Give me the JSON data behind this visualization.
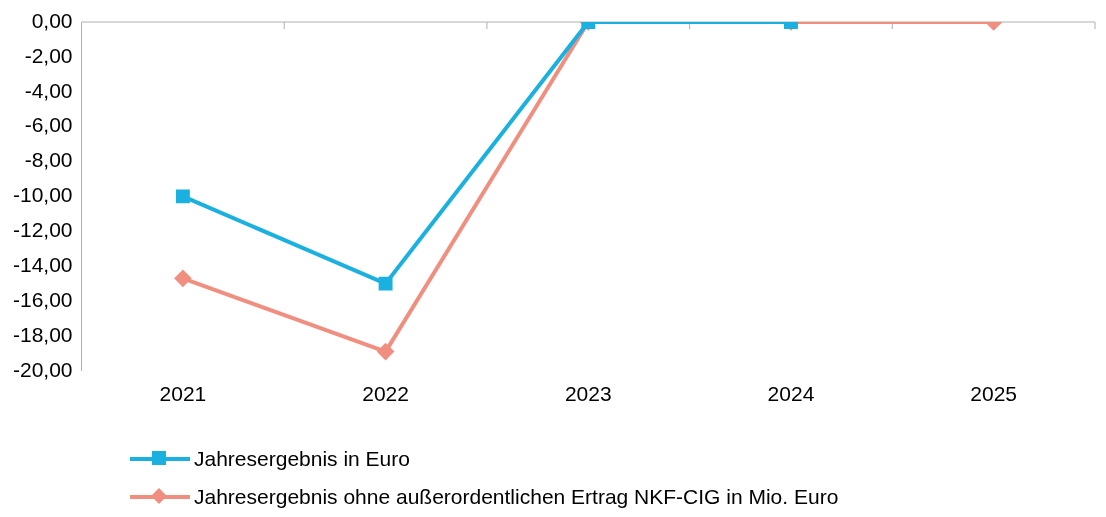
{
  "chart_data": {
    "type": "line",
    "categories": [
      "2021",
      "2022",
      "2023",
      "2024",
      "2025"
    ],
    "series": [
      {
        "name": "Jahresergebnis in Euro",
        "color": "#1ab0e0",
        "marker": "square",
        "values": [
          -10.0,
          -15.0,
          0,
          0,
          null
        ]
      },
      {
        "name": "Jahresergebnis ohne außerordentlichen Ertrag NKF-CIG in Mio. Euro",
        "color": "#f08f80",
        "marker": "diamond",
        "values": [
          -14.7,
          -18.9,
          0,
          0,
          0
        ]
      }
    ],
    "ylim": [
      -20,
      0
    ],
    "yticks": [
      {
        "value": 0,
        "label": "0,00"
      },
      {
        "value": -2,
        "label": "-2,00"
      },
      {
        "value": -4,
        "label": "-4,00"
      },
      {
        "value": -6,
        "label": "-6,00"
      },
      {
        "value": -8,
        "label": "-8,00"
      },
      {
        "value": -10,
        "label": "-10,00"
      },
      {
        "value": -12,
        "label": "-12,00"
      },
      {
        "value": -14,
        "label": "-14,00"
      },
      {
        "value": -16,
        "label": "-16,00"
      },
      {
        "value": -18,
        "label": "-18,00"
      },
      {
        "value": -20,
        "label": "-20,00"
      }
    ],
    "grid": false,
    "legend": "bottom",
    "line_style": "solid"
  }
}
